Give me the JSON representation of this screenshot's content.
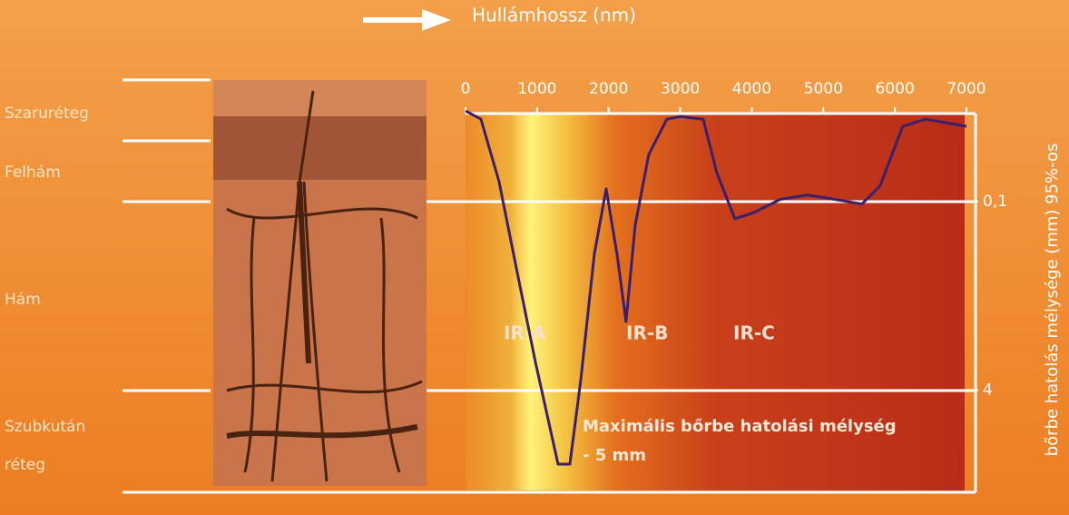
{
  "chart_data": {
    "type": "line",
    "x_label": "Hullámhossz (nm)",
    "y_label": "bőrbe hatolás mélysége (mm) 95%-os",
    "y_scale": "log",
    "y_inverted": true,
    "xlim": [
      0,
      7000
    ],
    "xticks": [
      0,
      1000,
      2000,
      3000,
      4000,
      5000,
      6000,
      7000
    ],
    "ylim": [
      0.015,
      30
    ],
    "yticks": [
      {
        "value": 0.1,
        "label": "0,1"
      },
      4
    ],
    "layers": [
      "Szaruréteg",
      "Felhám",
      "Hám",
      "Szubkután",
      "réteg"
    ],
    "regions": [
      "IR-A",
      "IR-B",
      "IR-C"
    ],
    "annotation": [
      "Maximális bőrbe hatolási mélység",
      "- 5 mm"
    ],
    "series": [
      {
        "color": "#3b1f6b",
        "x": [
          0,
          215,
          469,
          722,
          976,
          1293,
          1458,
          1610,
          1800,
          1965,
          2117,
          2243,
          2370,
          2560,
          2814,
          3004,
          3321,
          3511,
          3764,
          4018,
          4398,
          4778,
          5158,
          5539,
          5792,
          6109,
          6426,
          7000
        ],
        "values": [
          0.017,
          0.02,
          0.068,
          0.4,
          2.3,
          17,
          17,
          3.3,
          0.28,
          0.078,
          0.28,
          1.05,
          0.16,
          0.04,
          0.02,
          0.019,
          0.02,
          0.057,
          0.14,
          0.125,
          0.096,
          0.088,
          0.096,
          0.105,
          0.074,
          0.023,
          0.02,
          0.023
        ]
      }
    ]
  }
}
